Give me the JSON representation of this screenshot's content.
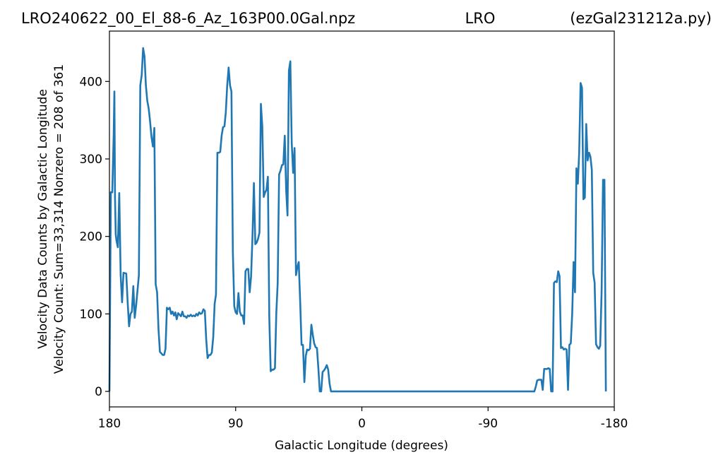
{
  "header": {
    "left": "LRO240622_00_El_88-6_Az_163P00.0Gal.npz",
    "center": "LRO",
    "right": "(ezGal231212a.py)"
  },
  "chart_data": {
    "type": "line",
    "xlabel": "Galactic Longitude (degrees)",
    "ylabel": [
      "Velocity Data Counts by Galactic Longitude",
      "Velocity Count: Sum=33,314 Nonzero = 208 of 361"
    ],
    "xlim": [
      180,
      -180
    ],
    "ylim": [
      -20,
      465
    ],
    "xticks": [
      180,
      90,
      0,
      -90,
      -180
    ],
    "xtick_labels": [
      "180",
      "90",
      "0",
      "-90",
      "-180"
    ],
    "yticks": [
      0,
      100,
      200,
      300,
      400
    ],
    "ytick_labels": [
      "0",
      "100",
      "200",
      "300",
      "400"
    ],
    "grid": false,
    "series": [
      {
        "color": "#1f77b4",
        "points": [
          [
            180,
            0
          ],
          [
            179,
            257
          ],
          [
            178,
            257
          ],
          [
            177,
            330
          ],
          [
            176.5,
            387
          ],
          [
            176,
            250
          ],
          [
            175.5,
            203
          ],
          [
            175,
            195
          ],
          [
            174,
            186
          ],
          [
            173,
            256
          ],
          [
            172,
            150
          ],
          [
            171,
            115
          ],
          [
            170,
            153
          ],
          [
            168,
            152
          ],
          [
            167,
            115
          ],
          [
            166,
            84
          ],
          [
            165,
            100
          ],
          [
            164,
            103
          ],
          [
            163,
            136
          ],
          [
            162,
            95
          ],
          [
            161,
            110
          ],
          [
            160,
            130
          ],
          [
            159,
            150
          ],
          [
            158,
            395
          ],
          [
            157,
            408
          ],
          [
            156,
            443
          ],
          [
            155,
            432
          ],
          [
            154,
            395
          ],
          [
            153,
            375
          ],
          [
            152,
            365
          ],
          [
            151,
            348
          ],
          [
            150,
            328
          ],
          [
            149,
            316
          ],
          [
            148,
            340
          ],
          [
            147,
            138
          ],
          [
            146,
            128
          ],
          [
            145,
            80
          ],
          [
            144,
            51
          ],
          [
            143,
            49
          ],
          [
            142,
            47
          ],
          [
            141,
            47
          ],
          [
            140,
            55
          ],
          [
            139,
            108
          ],
          [
            138,
            106
          ],
          [
            137,
            108
          ],
          [
            136,
            100
          ],
          [
            135,
            103
          ],
          [
            134,
            98
          ],
          [
            133,
            102
          ],
          [
            132,
            93
          ],
          [
            131,
            101
          ],
          [
            130,
            99
          ],
          [
            129,
            97
          ],
          [
            128,
            103
          ],
          [
            127,
            97
          ],
          [
            126,
            97
          ],
          [
            125,
            95
          ],
          [
            124,
            98
          ],
          [
            123,
            97
          ],
          [
            122,
            99
          ],
          [
            121,
            97
          ],
          [
            120,
            98
          ],
          [
            119,
            97
          ],
          [
            118,
            100
          ],
          [
            117,
            98
          ],
          [
            116,
            102
          ],
          [
            115,
            100
          ],
          [
            114,
            101
          ],
          [
            113,
            106
          ],
          [
            112,
            104
          ],
          [
            111,
            68
          ],
          [
            110,
            43
          ],
          [
            109,
            47
          ],
          [
            108,
            47
          ],
          [
            107,
            50
          ],
          [
            106,
            70
          ],
          [
            105,
            113
          ],
          [
            104,
            125
          ],
          [
            103,
            308
          ],
          [
            102,
            308
          ],
          [
            101,
            309
          ],
          [
            100,
            330
          ],
          [
            99,
            341
          ],
          [
            98,
            342
          ],
          [
            97,
            360
          ],
          [
            96,
            395
          ],
          [
            95,
            418
          ],
          [
            94,
            395
          ],
          [
            93,
            387
          ],
          [
            92,
            180
          ],
          [
            91,
            110
          ],
          [
            90,
            102
          ],
          [
            89,
            100
          ],
          [
            88,
            127
          ],
          [
            87,
            103
          ],
          [
            86,
            98
          ],
          [
            85,
            98
          ],
          [
            84,
            87
          ],
          [
            83,
            155
          ],
          [
            82,
            158
          ],
          [
            81,
            158
          ],
          [
            80,
            128
          ],
          [
            79,
            148
          ],
          [
            78,
            200
          ],
          [
            77,
            269
          ],
          [
            76,
            190
          ],
          [
            75,
            192
          ],
          [
            74,
            197
          ],
          [
            73,
            205
          ],
          [
            72,
            371
          ],
          [
            71,
            342
          ],
          [
            70,
            251
          ],
          [
            69,
            257
          ],
          [
            68,
            260
          ],
          [
            67,
            277
          ],
          [
            66,
            95
          ],
          [
            65,
            26
          ],
          [
            64,
            28
          ],
          [
            63,
            28
          ],
          [
            62,
            30
          ],
          [
            61,
            100
          ],
          [
            60,
            140
          ],
          [
            59,
            280
          ],
          [
            58,
            285
          ],
          [
            57,
            292
          ],
          [
            56,
            293
          ],
          [
            55,
            330
          ],
          [
            54,
            260
          ],
          [
            53,
            227
          ],
          [
            52,
            414
          ],
          [
            51,
            426
          ],
          [
            50,
            320
          ],
          [
            49,
            282
          ],
          [
            48,
            314
          ],
          [
            47,
            150
          ],
          [
            46,
            160
          ],
          [
            45,
            167
          ],
          [
            44,
            117
          ],
          [
            43,
            60
          ],
          [
            42,
            60
          ],
          [
            41,
            12
          ],
          [
            40,
            46
          ],
          [
            39,
            54
          ],
          [
            38,
            53
          ],
          [
            37,
            55
          ],
          [
            36,
            86
          ],
          [
            35,
            73
          ],
          [
            34,
            62
          ],
          [
            33,
            57
          ],
          [
            32,
            56
          ],
          [
            31,
            30
          ],
          [
            30,
            0
          ],
          [
            29,
            0
          ],
          [
            28,
            25
          ],
          [
            27,
            27
          ],
          [
            26,
            30
          ],
          [
            25,
            34
          ],
          [
            24,
            28
          ],
          [
            23,
            10
          ],
          [
            22,
            0
          ],
          [
            -123,
            0
          ],
          [
            -124,
            6
          ],
          [
            -125,
            14
          ],
          [
            -126,
            15
          ],
          [
            -127,
            15
          ],
          [
            -128,
            15
          ],
          [
            -129,
            2
          ],
          [
            -130,
            29
          ],
          [
            -131,
            29
          ],
          [
            -132,
            29
          ],
          [
            -133,
            30
          ],
          [
            -134,
            29
          ],
          [
            -135,
            0
          ],
          [
            -136,
            0
          ],
          [
            -137,
            140
          ],
          [
            -138,
            142
          ],
          [
            -139,
            141
          ],
          [
            -140,
            155
          ],
          [
            -141,
            149
          ],
          [
            -142,
            56
          ],
          [
            -143,
            57
          ],
          [
            -144,
            54
          ],
          [
            -145,
            55
          ],
          [
            -146,
            54
          ],
          [
            -147,
            2
          ],
          [
            -148,
            60
          ],
          [
            -149,
            62
          ],
          [
            -150,
            100
          ],
          [
            -151,
            167
          ],
          [
            -152,
            128
          ],
          [
            -153,
            288
          ],
          [
            -154,
            268
          ],
          [
            -155,
            308
          ],
          [
            -156,
            398
          ],
          [
            -157,
            392
          ],
          [
            -158,
            248
          ],
          [
            -159,
            250
          ],
          [
            -160,
            345
          ],
          [
            -161,
            298
          ],
          [
            -162,
            308
          ],
          [
            -163,
            303
          ],
          [
            -164,
            286
          ],
          [
            -165,
            153
          ],
          [
            -166,
            140
          ],
          [
            -167,
            61
          ],
          [
            -168,
            57
          ],
          [
            -169,
            55
          ],
          [
            -170,
            59
          ],
          [
            -171,
            130
          ],
          [
            -172,
            273
          ],
          [
            -173,
            273
          ],
          [
            -174,
            0
          ]
        ]
      }
    ]
  }
}
